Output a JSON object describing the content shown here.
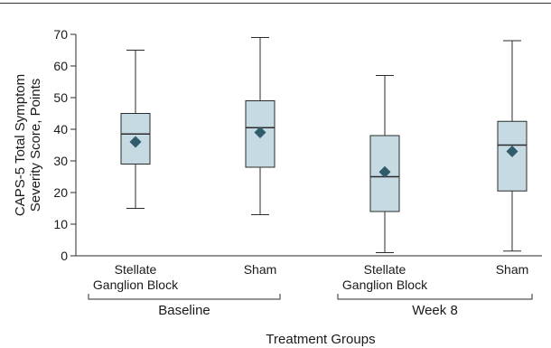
{
  "chart_data": {
    "type": "box",
    "ylabel_lines": [
      "CAPS-5 Total Symptom",
      "Severity Score, Points"
    ],
    "xlabel": "Treatment Groups",
    "ylim": [
      0,
      70
    ],
    "yticks": [
      0,
      10,
      20,
      30,
      40,
      50,
      60,
      70
    ],
    "groups": [
      {
        "label": "Baseline",
        "boxes": [
          {
            "label_lines": [
              "Stellate",
              "Ganglion Block"
            ],
            "min": 15,
            "q1": 29,
            "median": 38.5,
            "q3": 45,
            "max": 65,
            "mean": 36
          },
          {
            "label_lines": [
              "Sham"
            ],
            "min": 13,
            "q1": 28,
            "median": 40.5,
            "q3": 49,
            "max": 69,
            "mean": 39
          }
        ]
      },
      {
        "label": "Week 8",
        "boxes": [
          {
            "label_lines": [
              "Stellate",
              "Ganglion Block"
            ],
            "min": 1,
            "q1": 14,
            "median": 25,
            "q3": 38,
            "max": 57,
            "mean": 26.5
          },
          {
            "label_lines": [
              "Sham"
            ],
            "min": 1.5,
            "q1": 20.5,
            "median": 35,
            "q3": 42.5,
            "max": 68,
            "mean": 33
          }
        ]
      }
    ],
    "colors": {
      "box_fill": "#c5dae3",
      "line": "#2b2b2b",
      "mean_marker": "#2f5b6b",
      "top_rule": "#333333"
    },
    "legend": "none",
    "grid": false
  }
}
